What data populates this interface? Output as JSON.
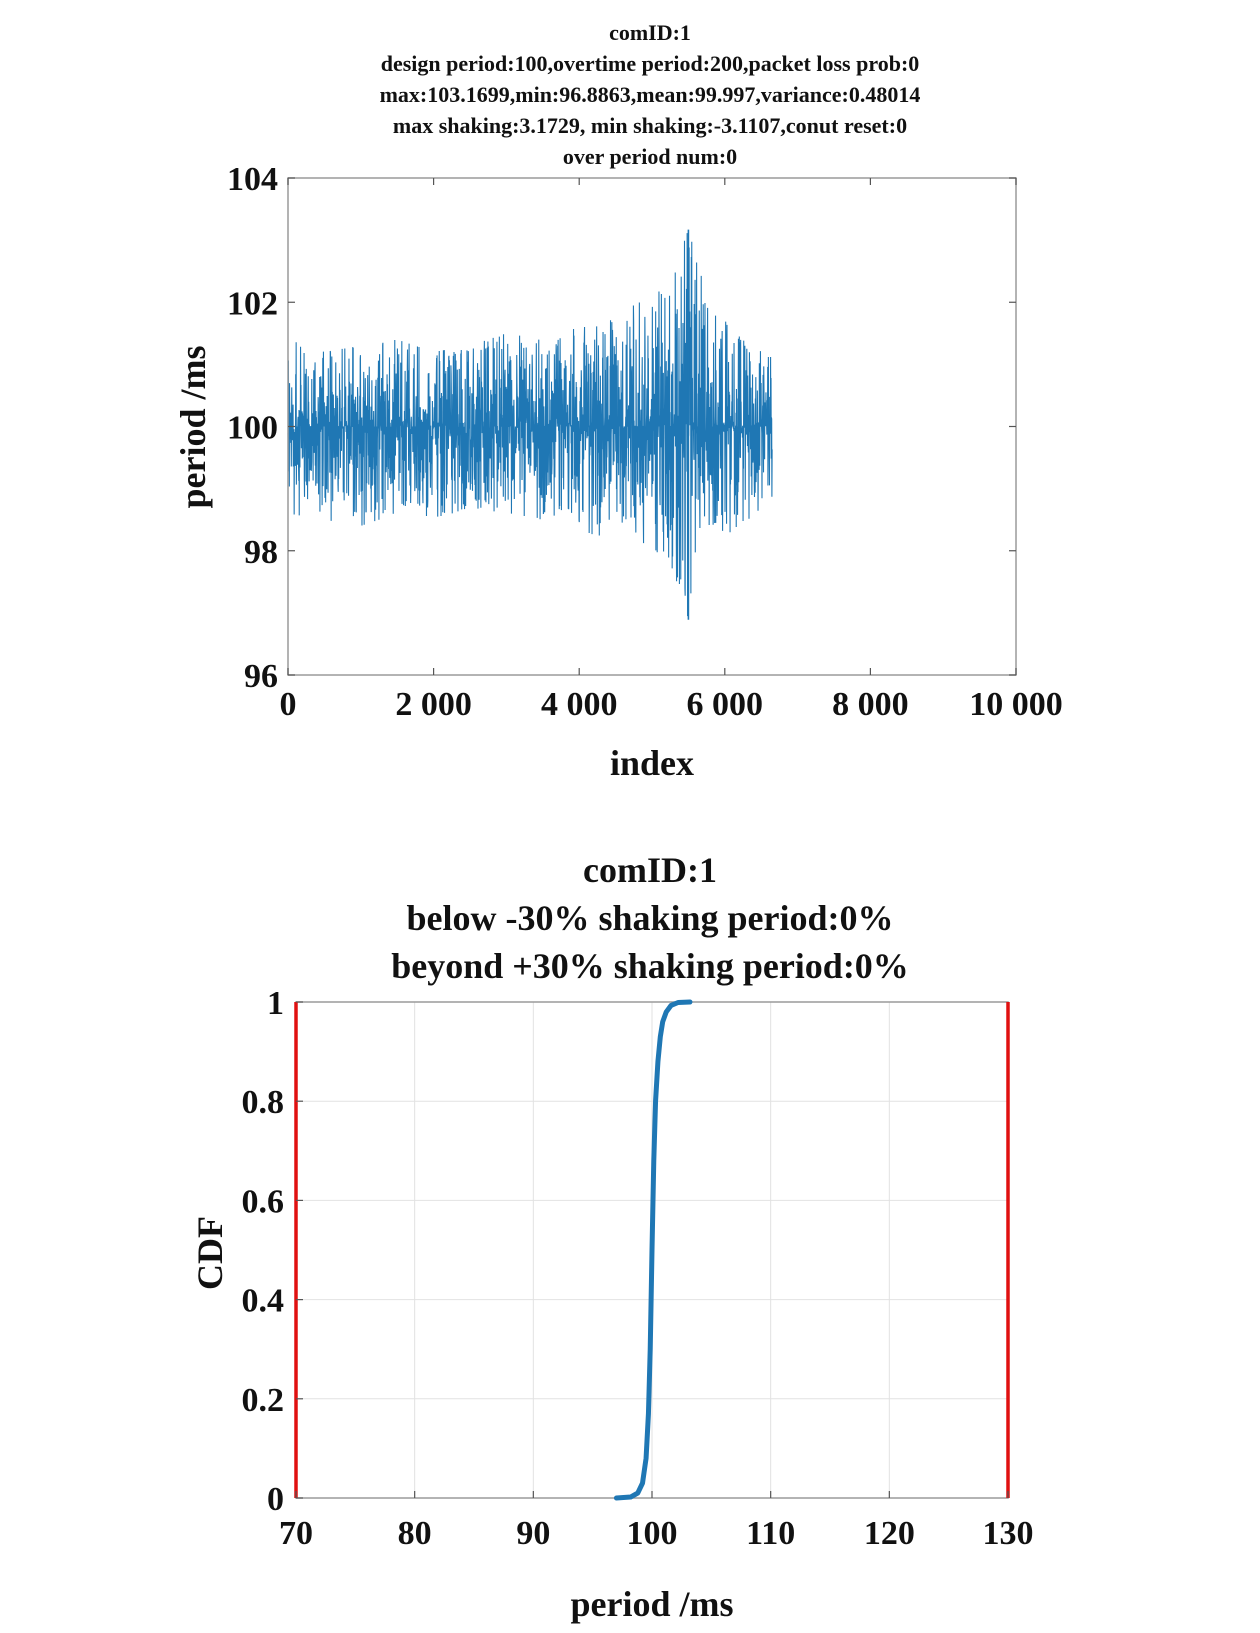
{
  "chart_data": [
    {
      "type": "line",
      "title_lines": [
        "comID:1",
        "design period:100,overtime period:200,packet loss prob:0",
        "max:103.1699,min:96.8863,mean:99.997,variance:0.48014",
        "max shaking:3.1729, min shaking:-3.1107,conut reset:0",
        "over period num:0"
      ],
      "xlabel": "index",
      "ylabel": "period /ms",
      "xlim": [
        0,
        10000
      ],
      "ylim": [
        96,
        104
      ],
      "x_ticks": [
        0,
        2000,
        4000,
        6000,
        8000,
        10000
      ],
      "x_tick_labels": [
        "0",
        "2 000",
        "4 000",
        "6 000",
        "8 000",
        "10 000"
      ],
      "y_ticks": [
        96,
        98,
        100,
        102,
        104
      ],
      "y_tick_labels": [
        "96",
        "98",
        "100",
        "102",
        "104"
      ],
      "grid": false,
      "series_color": "#1f77b4",
      "series": [
        {
          "x_start": 0,
          "x_end": 6650,
          "center": 100.0,
          "upper_envelope": [
            [
              0,
              101.4
            ],
            [
              500,
              101.2
            ],
            [
              1000,
              101.3
            ],
            [
              1500,
              101.4
            ],
            [
              2000,
              101.2
            ],
            [
              2500,
              101.3
            ],
            [
              3000,
              101.5
            ],
            [
              3500,
              101.4
            ],
            [
              4000,
              101.6
            ],
            [
              4500,
              101.8
            ],
            [
              5000,
              102.1
            ],
            [
              5300,
              102.5
            ],
            [
              5500,
              103.17
            ],
            [
              5800,
              101.9
            ],
            [
              6200,
              101.5
            ],
            [
              6650,
              101.1
            ]
          ],
          "lower_envelope": [
            [
              0,
              98.6
            ],
            [
              500,
              98.5
            ],
            [
              1000,
              98.4
            ],
            [
              1500,
              98.6
            ],
            [
              2000,
              98.5
            ],
            [
              2500,
              98.7
            ],
            [
              3000,
              98.6
            ],
            [
              3500,
              98.5
            ],
            [
              4000,
              98.3
            ],
            [
              4500,
              98.2
            ],
            [
              5000,
              98.1
            ],
            [
              5400,
              97.4
            ],
            [
              5500,
              96.89
            ],
            [
              5700,
              98.0
            ],
            [
              6200,
              98.4
            ],
            [
              6650,
              98.7
            ]
          ]
        }
      ]
    },
    {
      "type": "line",
      "title_lines": [
        "comID:1",
        "below -30% shaking period:0%",
        "beyond +30% shaking period:0%"
      ],
      "xlabel": "period /ms",
      "ylabel": "CDF",
      "xlim": [
        70,
        130
      ],
      "ylim": [
        0,
        1
      ],
      "x_ticks": [
        70,
        80,
        90,
        100,
        110,
        120,
        130
      ],
      "x_tick_labels": [
        "70",
        "80",
        "90",
        "100",
        "110",
        "120",
        "130"
      ],
      "y_ticks": [
        0,
        0.2,
        0.4,
        0.6,
        0.8,
        1
      ],
      "y_tick_labels": [
        "0",
        "0.2",
        "0.4",
        "0.6",
        "0.8",
        "1"
      ],
      "grid": true,
      "series": [
        {
          "color": "#1f77b4",
          "x": [
            97.0,
            98.2,
            98.8,
            99.2,
            99.5,
            99.7,
            99.85,
            100.0,
            100.15,
            100.3,
            100.5,
            100.7,
            100.9,
            101.2,
            101.6,
            102.2,
            103.2
          ],
          "y": [
            0.0,
            0.002,
            0.01,
            0.03,
            0.08,
            0.17,
            0.3,
            0.5,
            0.68,
            0.8,
            0.88,
            0.93,
            0.96,
            0.98,
            0.993,
            0.999,
            1.0
          ]
        }
      ],
      "threshold_lines": {
        "color": "#e01010",
        "x": [
          70,
          130
        ]
      }
    }
  ]
}
